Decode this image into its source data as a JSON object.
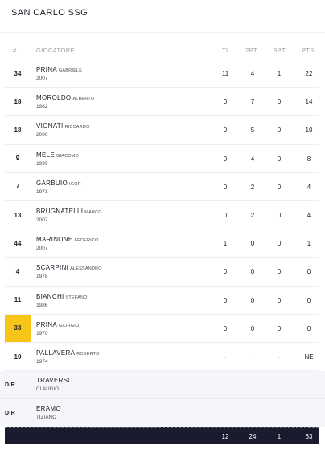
{
  "team": {
    "name": "SAN CARLO SSG"
  },
  "headers": {
    "num": "#",
    "player": "GIOCATORE",
    "tl": "TL",
    "pt2": "2PT",
    "pt3": "3PT",
    "pts": "PTS"
  },
  "highlight_color": "#f6c518",
  "players": [
    {
      "num": "34",
      "last": "PRINA",
      "first": "GABRIELE",
      "year": "2007",
      "tl": "11",
      "pt2": "4",
      "pt3": "1",
      "pts": "22",
      "highlight": false
    },
    {
      "num": "18",
      "last": "MOROLDO",
      "first": "ALBERTO",
      "year": "1982",
      "tl": "0",
      "pt2": "7",
      "pt3": "0",
      "pts": "14",
      "highlight": false
    },
    {
      "num": "18",
      "last": "VIGNATI",
      "first": "RICCARDO",
      "year": "2000",
      "tl": "0",
      "pt2": "5",
      "pt3": "0",
      "pts": "10",
      "highlight": false
    },
    {
      "num": "9",
      "last": "MELE",
      "first": "GIACOMO",
      "year": "1999",
      "tl": "0",
      "pt2": "4",
      "pt3": "0",
      "pts": "8",
      "highlight": false
    },
    {
      "num": "7",
      "last": "GARBUIO",
      "first": "IGOR",
      "year": "1971",
      "tl": "0",
      "pt2": "2",
      "pt3": "0",
      "pts": "4",
      "highlight": false
    },
    {
      "num": "13",
      "last": "BRUGNATELLI",
      "first": "MARCO",
      "year": "2007",
      "tl": "0",
      "pt2": "2",
      "pt3": "0",
      "pts": "4",
      "highlight": false
    },
    {
      "num": "44",
      "last": "MARINONE",
      "first": "FEDERICO",
      "year": "2007",
      "tl": "1",
      "pt2": "0",
      "pt3": "0",
      "pts": "1",
      "highlight": false
    },
    {
      "num": "4",
      "last": "SCARPINI",
      "first": "ALESSANDRO",
      "year": "1978",
      "tl": "0",
      "pt2": "0",
      "pt3": "0",
      "pts": "0",
      "highlight": false
    },
    {
      "num": "11",
      "last": "BIANCHI",
      "first": "STEFANO",
      "year": "1986",
      "tl": "0",
      "pt2": "0",
      "pt3": "0",
      "pts": "0",
      "highlight": false
    },
    {
      "num": "33",
      "last": "PRINA",
      "first": "GIORGIO",
      "year": "1970",
      "tl": "0",
      "pt2": "0",
      "pt3": "0",
      "pts": "0",
      "highlight": true
    },
    {
      "num": "10",
      "last": "PALLAVERA",
      "first": "ROBERTO",
      "year": "1974",
      "tl": "-",
      "pt2": "-",
      "pt3": "-",
      "pts": "NE",
      "highlight": false
    }
  ],
  "staff": [
    {
      "role": "DIR",
      "last": "TRAVERSO",
      "first": "CLAUDIO"
    },
    {
      "role": "DIR",
      "last": "ERAMO",
      "first": "TIZIANO"
    }
  ],
  "totals": {
    "tl": "12",
    "pt2": "24",
    "pt3": "1",
    "pts": "63"
  }
}
